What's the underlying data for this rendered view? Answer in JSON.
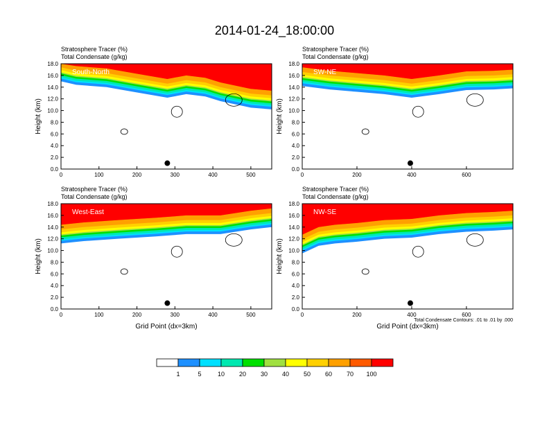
{
  "title": "2014-01-24_18:00:00",
  "colors": {
    "white": "#ffffff",
    "blue": "#1e90ff",
    "cyan": "#00e0ff",
    "sea": "#00e8b0",
    "green": "#00e000",
    "lime": "#a0e040",
    "yellow": "#ffff00",
    "gold": "#ffd000",
    "orange": "#ffa000",
    "red_orange": "#ff5a00",
    "red": "#ff0000"
  },
  "chart_data": [
    {
      "type": "heatmap",
      "label": "South-North",
      "subtitle1": "Stratosphere Tracer   (%)",
      "subtitle2": "Total Condensate   (g/kg)",
      "ylabel": "Height (km)",
      "xlabel": "",
      "xlim": [
        0,
        555
      ],
      "ylim": [
        0,
        18
      ],
      "xticks": [
        0,
        100,
        200,
        300,
        400,
        500
      ],
      "xtick_labels": [
        "0",
        "100",
        "200",
        "300",
        "400",
        "500"
      ],
      "yticks": [
        0,
        2,
        4,
        6,
        8,
        10,
        12,
        14,
        16,
        18
      ],
      "ytick_labels": [
        "0.0",
        "2.0",
        "4.0",
        "6.0",
        "8.0",
        "10.0",
        "12.0",
        "14.0",
        "16.0",
        "18.0"
      ],
      "marker_x": 280,
      "marker_y": 1.0,
      "tracer_base": [
        [
          0,
          16.0
        ],
        [
          40,
          15.4
        ],
        [
          120,
          15.0
        ],
        [
          190,
          14.2
        ],
        [
          280,
          13.2
        ],
        [
          330,
          13.8
        ],
        [
          380,
          13.4
        ],
        [
          420,
          12.6
        ],
        [
          500,
          11.5
        ],
        [
          555,
          11.2
        ]
      ]
    },
    {
      "type": "heatmap",
      "label": "SW-NE",
      "subtitle1": "Stratosphere Tracer   (%)",
      "subtitle2": "Total Condensate   (g/kg)",
      "ylabel": "Height (km)",
      "xlabel": "",
      "xlim": [
        0,
        770
      ],
      "ylim": [
        0,
        18
      ],
      "xticks": [
        0,
        200,
        400,
        600
      ],
      "xtick_labels": [
        "0",
        "200",
        "400",
        "600"
      ],
      "yticks": [
        0,
        2,
        4,
        6,
        8,
        10,
        12,
        14,
        16,
        18
      ],
      "ytick_labels": [
        "0.0",
        "2.0",
        "4.0",
        "6.0",
        "8.0",
        "10.0",
        "12.0",
        "14.0",
        "16.0",
        "18.0"
      ],
      "marker_x": 395,
      "marker_y": 1.0,
      "tracer_base": [
        [
          0,
          15.2
        ],
        [
          100,
          14.6
        ],
        [
          200,
          14.2
        ],
        [
          300,
          13.8
        ],
        [
          400,
          13.2
        ],
        [
          500,
          13.8
        ],
        [
          600,
          14.5
        ],
        [
          700,
          14.6
        ],
        [
          770,
          14.8
        ]
      ]
    },
    {
      "type": "heatmap",
      "label": "West-East",
      "subtitle1": "Stratosphere Tracer   (%)",
      "subtitle2": "Total Condensate   (g/kg)",
      "ylabel": "Height (km)",
      "xlabel": "Grid Point (dx=3km)",
      "xlim": [
        0,
        555
      ],
      "ylim": [
        0,
        18
      ],
      "xticks": [
        0,
        100,
        200,
        300,
        400,
        500
      ],
      "xtick_labels": [
        "0",
        "100",
        "200",
        "300",
        "400",
        "500"
      ],
      "yticks": [
        0,
        2,
        4,
        6,
        8,
        10,
        12,
        14,
        16,
        18
      ],
      "ytick_labels": [
        "0.0",
        "2.0",
        "4.0",
        "6.0",
        "8.0",
        "10.0",
        "12.0",
        "14.0",
        "16.0",
        "18.0"
      ],
      "marker_x": 280,
      "marker_y": 1.0,
      "tracer_base": [
        [
          0,
          12.2
        ],
        [
          60,
          12.6
        ],
        [
          150,
          13.0
        ],
        [
          250,
          13.4
        ],
        [
          330,
          13.8
        ],
        [
          420,
          13.8
        ],
        [
          500,
          14.6
        ],
        [
          555,
          15.0
        ]
      ]
    },
    {
      "type": "heatmap",
      "label": "NW-SE",
      "subtitle1": "Stratosphere Tracer   (%)",
      "subtitle2": "Total Condensate   (g/kg)",
      "ylabel": "Height (km)",
      "xlabel": "Grid Point (dx=3km)",
      "note": "Total Condensate Contours: .01 to .01 by .000",
      "xlim": [
        0,
        770
      ],
      "ylim": [
        0,
        18
      ],
      "xticks": [
        0,
        200,
        400,
        600
      ],
      "xtick_labels": [
        "0",
        "200",
        "400",
        "600"
      ],
      "yticks": [
        0,
        2,
        4,
        6,
        8,
        10,
        12,
        14,
        16,
        18
      ],
      "ytick_labels": [
        "0.0",
        "2.0",
        "4.0",
        "6.0",
        "8.0",
        "10.0",
        "12.0",
        "14.0",
        "16.0",
        "18.0"
      ],
      "marker_x": 395,
      "marker_y": 1.0,
      "tracer_base": [
        [
          0,
          10.5
        ],
        [
          60,
          11.8
        ],
        [
          120,
          12.2
        ],
        [
          200,
          12.5
        ],
        [
          300,
          13.0
        ],
        [
          400,
          13.2
        ],
        [
          500,
          13.8
        ],
        [
          600,
          14.2
        ],
        [
          700,
          14.4
        ],
        [
          770,
          14.6
        ]
      ]
    }
  ],
  "colorbar": {
    "labels": [
      "1",
      "5",
      "10",
      "20",
      "30",
      "40",
      "50",
      "60",
      "70",
      "100"
    ],
    "colors": [
      "#ffffff",
      "#1e90ff",
      "#00e0ff",
      "#00e8b0",
      "#00e000",
      "#a0e040",
      "#ffff00",
      "#ffd000",
      "#ffa000",
      "#ff5a00",
      "#ff0000"
    ]
  }
}
